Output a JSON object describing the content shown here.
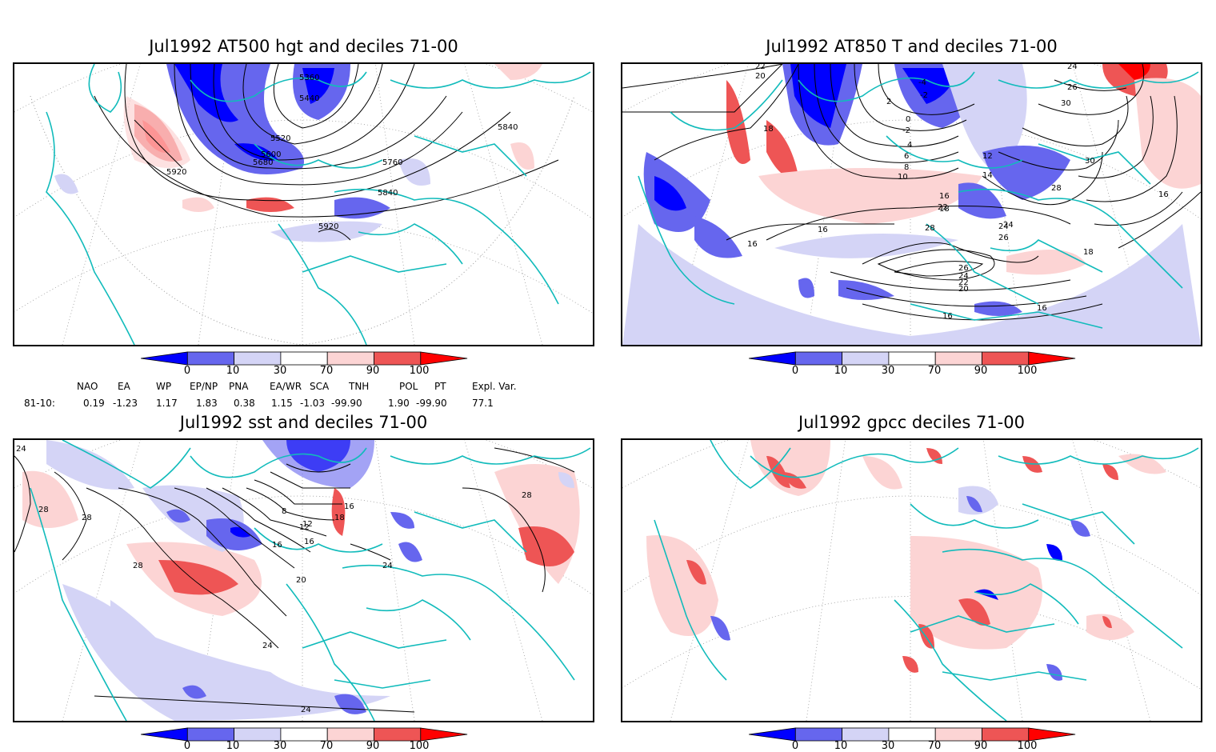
{
  "panels": [
    {
      "title": "Jul1992 AT500 hgt and deciles 71-00",
      "contour_labels": [
        "5360",
        "5440",
        "5520",
        "5600",
        "5680",
        "5760",
        "5840",
        "5840",
        "5920",
        "5920"
      ]
    },
    {
      "title": "Jul1992 AT850 T and deciles 71-00",
      "contour_labels": [
        "22",
        "20",
        "18",
        "-4",
        "-2",
        "2",
        "0",
        "-2",
        "4",
        "6",
        "8",
        "10",
        "12",
        "14",
        "16",
        "18",
        "22",
        "24",
        "26",
        "28",
        "26",
        "24",
        "22",
        "20",
        "16",
        "16",
        "16",
        "16",
        "30",
        "30",
        "28",
        "26",
        "24",
        "24",
        "16",
        "18"
      ]
    },
    {
      "title": "Jul1992 sst and deciles 71-00",
      "contour_labels": [
        "24",
        "28",
        "28",
        "28",
        "8",
        "12",
        "16",
        "16",
        "20",
        "24",
        "16",
        "18",
        "12",
        "28",
        "24",
        "24"
      ]
    },
    {
      "title": "Jul1992 gpcc deciles 71-00",
      "contour_labels": []
    }
  ],
  "colorbar": {
    "labels": [
      "0",
      "10",
      "30",
      "70",
      "90",
      "100"
    ],
    "colors": [
      "#0000ff",
      "#6666ee",
      "#d4d4f6",
      "#ffffff",
      "#fcd4d4",
      "#ee5555",
      "#ff0000"
    ]
  },
  "teleconnection": {
    "names": [
      "NAO",
      "EA",
      "WP",
      "EP/NP",
      "PNA",
      "EA/WR",
      "SCA",
      "TNH",
      "POL",
      "PT",
      "Expl. Var."
    ],
    "period": "81-10:",
    "values": [
      "0.19",
      "-1.23",
      "1.17",
      "1.83",
      "0.38",
      "1.15",
      "-1.03",
      "-99.90",
      "1.90",
      "-99.90",
      "77.1"
    ]
  },
  "colors": {
    "coast": "#11bbbb",
    "contour": "#000000",
    "grid": "#999999"
  }
}
